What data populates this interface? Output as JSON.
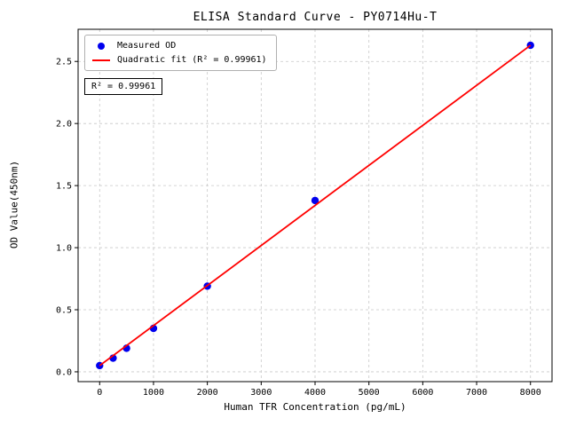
{
  "chart": {
    "title": "ELISA Standard Curve - PY0714Hu-T",
    "annotation": "R² = 0.99961"
  },
  "chart_data": {
    "type": "scatter",
    "title": "ELISA Standard Curve - PY0714Hu-T",
    "xlabel": "Human TFR Concentration (pg/mL)",
    "ylabel": "OD Value(450nm)",
    "x_ticks": [
      0,
      1000,
      2000,
      3000,
      4000,
      5000,
      6000,
      7000,
      8000
    ],
    "x_tick_labels": [
      "0",
      "1000",
      "2000",
      "3000",
      "4000",
      "5000",
      "6000",
      "7000",
      "8000"
    ],
    "y_ticks": [
      0.0,
      0.5,
      1.0,
      1.5,
      2.0,
      2.5
    ],
    "y_tick_labels": [
      "0.0",
      "0.5",
      "1.0",
      "1.5",
      "2.0",
      "2.5"
    ],
    "xlim": [
      -400,
      8400
    ],
    "ylim": [
      -0.079,
      2.759
    ],
    "grid": true,
    "grid_style": "dashed",
    "legend_position": "upper left",
    "r_squared": "R² = 0.99961",
    "series": [
      {
        "name": "Measured OD",
        "type": "scatter",
        "color": "#0000ee",
        "x": [
          0,
          250,
          500,
          1000,
          2000,
          4000,
          8000
        ],
        "y": [
          0.05,
          0.11,
          0.19,
          0.35,
          0.69,
          1.38,
          2.63
        ]
      },
      {
        "name": "Quadratic fit (R² = 0.99961)",
        "type": "line",
        "color": "#ff0000",
        "x": [
          0,
          8000
        ],
        "y": [
          0.05,
          2.63
        ]
      }
    ],
    "colors": {
      "grid": "#c8c8c8",
      "axis": "#000000",
      "scatter": "#0000ee",
      "fit_line": "#ff0000"
    }
  }
}
